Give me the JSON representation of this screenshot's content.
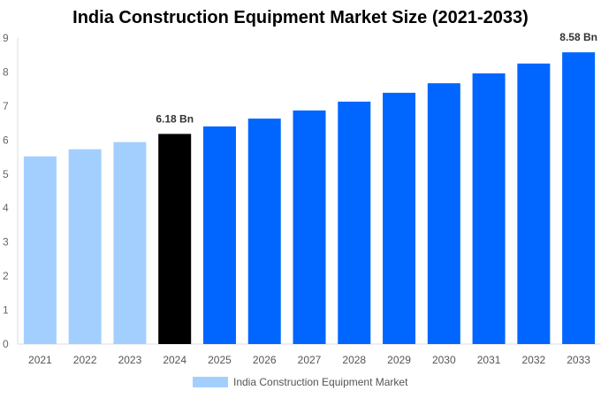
{
  "chart_data": {
    "type": "bar",
    "title": "India Construction Equipment Market Size (2021-2033)",
    "categories": [
      "2021",
      "2022",
      "2023",
      "2024",
      "2025",
      "2026",
      "2027",
      "2028",
      "2029",
      "2030",
      "2031",
      "2032",
      "2033"
    ],
    "series": [
      {
        "name": "India Construction Equipment Market",
        "values": [
          5.52,
          5.73,
          5.94,
          6.18,
          6.4,
          6.63,
          6.87,
          7.13,
          7.39,
          7.67,
          7.96,
          8.25,
          8.58
        ]
      }
    ],
    "bar_colors": [
      "#a3cfff",
      "#a3cfff",
      "#a3cfff",
      "#000000",
      "#0066ff",
      "#0066ff",
      "#0066ff",
      "#0066ff",
      "#0066ff",
      "#0066ff",
      "#0066ff",
      "#0066ff",
      "#0066ff"
    ],
    "data_labels": {
      "3": "6.18 Bn",
      "12": "8.58 Bn"
    },
    "ylim": [
      0,
      9
    ],
    "yticks": [
      "0",
      "1",
      "2",
      "3",
      "4",
      "5",
      "6",
      "7",
      "8",
      "9"
    ],
    "xlabel": "",
    "ylabel": "",
    "grid": false,
    "legend": "bottom"
  }
}
